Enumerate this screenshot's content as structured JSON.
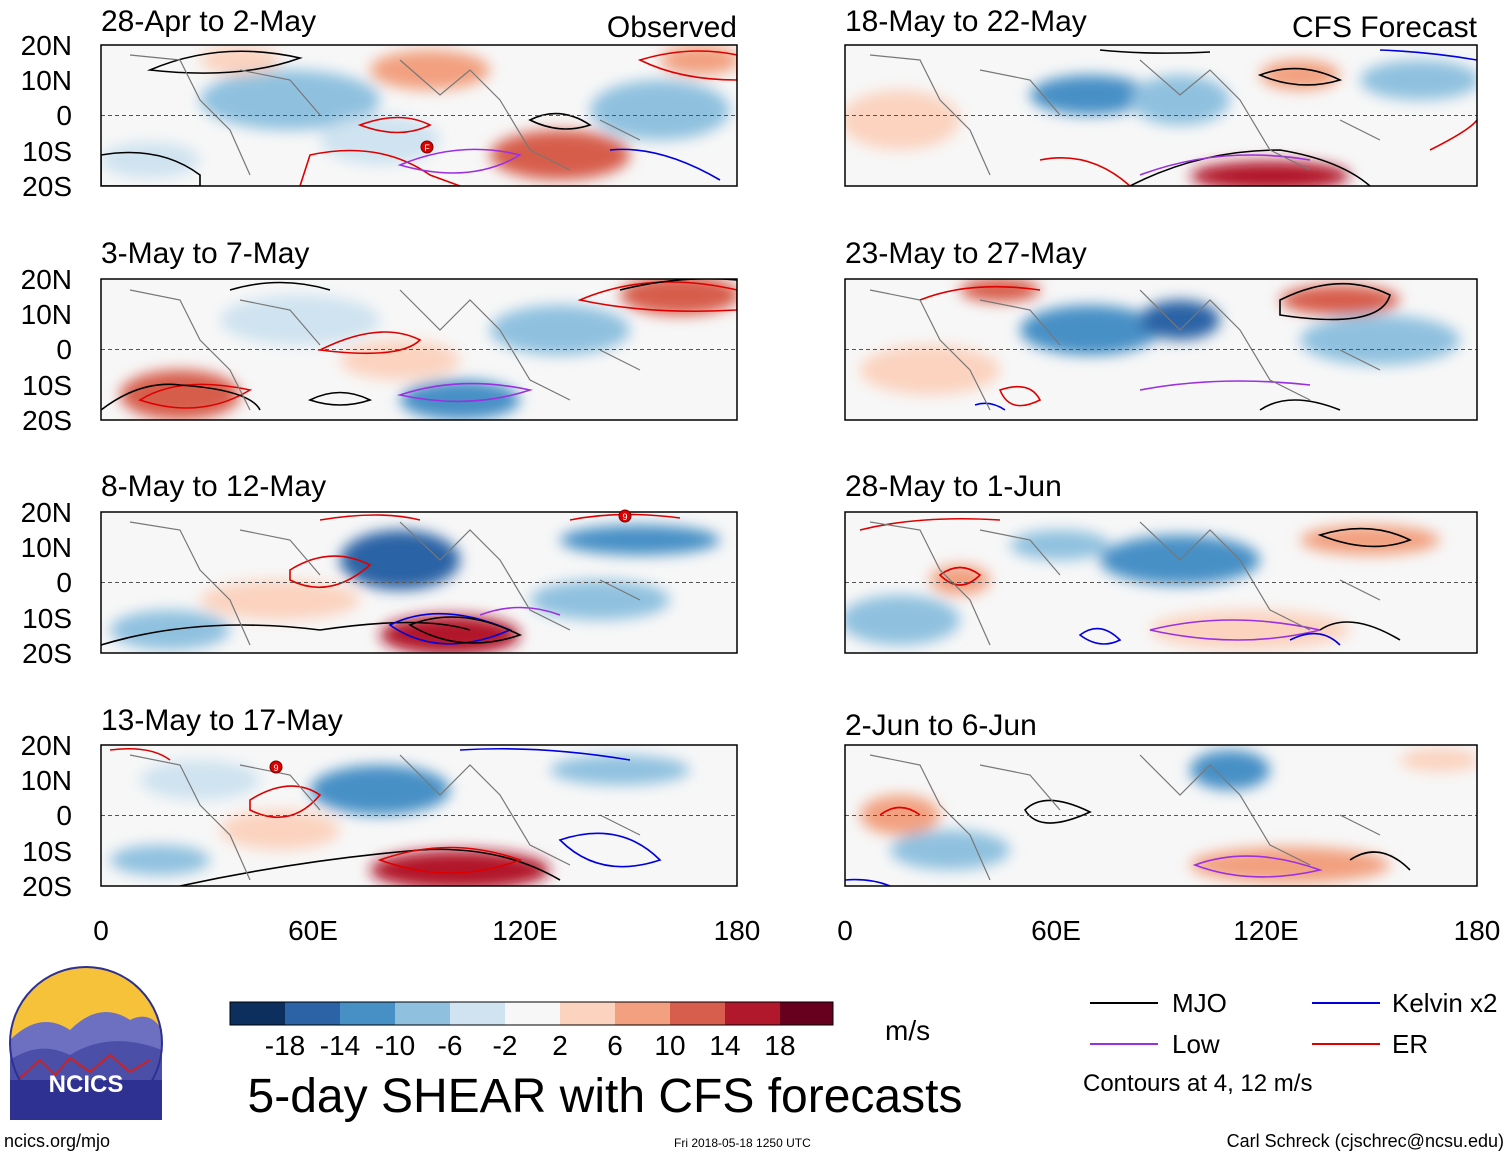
{
  "panels": [
    {
      "column": "left",
      "row": 0,
      "period": "28-Apr to 2-May",
      "tag": "Observed"
    },
    {
      "column": "left",
      "row": 1,
      "period": "3-May to 7-May",
      "tag": ""
    },
    {
      "column": "left",
      "row": 2,
      "period": "8-May to 12-May",
      "tag": ""
    },
    {
      "column": "left",
      "row": 3,
      "period": "13-May to 17-May",
      "tag": ""
    },
    {
      "column": "right",
      "row": 0,
      "period": "18-May to 22-May",
      "tag": "CFS Forecast"
    },
    {
      "column": "right",
      "row": 1,
      "period": "23-May to 27-May",
      "tag": ""
    },
    {
      "column": "right",
      "row": 2,
      "period": "28-May to 1-Jun",
      "tag": ""
    },
    {
      "column": "right",
      "row": 3,
      "period": "2-Jun to 6-Jun",
      "tag": ""
    }
  ],
  "axes": {
    "lat_ticks": [
      "20N",
      "10N",
      "0",
      "10S",
      "20S"
    ],
    "lat_values": [
      20,
      10,
      0,
      -10,
      -20
    ],
    "lon_ticks": [
      "0",
      "60E",
      "120E",
      "180"
    ],
    "lon_values": [
      0,
      60,
      120,
      180
    ]
  },
  "colorbar": {
    "labels": [
      "-18",
      "-14",
      "-10",
      "-6",
      "-2",
      "2",
      "6",
      "10",
      "14",
      "18"
    ],
    "colors": [
      "#0d2f5e",
      "#2b63a6",
      "#4790c6",
      "#8fc1df",
      "#cfe3f0",
      "#f7f7f7",
      "#fbd3bf",
      "#f2a07f",
      "#d75d4c",
      "#b2182b",
      "#67001f"
    ],
    "units": "m/s"
  },
  "legend": {
    "items": [
      {
        "label": "MJO",
        "color": "#000000"
      },
      {
        "label": "Kelvin x2",
        "color": "#0000dd"
      },
      {
        "label": "Low",
        "color": "#9b30e0"
      },
      {
        "label": "ER",
        "color": "#dd0000"
      }
    ],
    "contour_note": "Contours at 4, 12 m/s"
  },
  "title": "5-day SHEAR with CFS forecasts",
  "logo_text": "NCICS",
  "footer": {
    "website": "ncics.org/mjo",
    "timestamp": "Fri 2018-05-18 1250 UTC",
    "author": "Carl Schreck (cjschrec@ncsu.edu)"
  },
  "storm_markers": [
    "F",
    "9",
    "9"
  ]
}
